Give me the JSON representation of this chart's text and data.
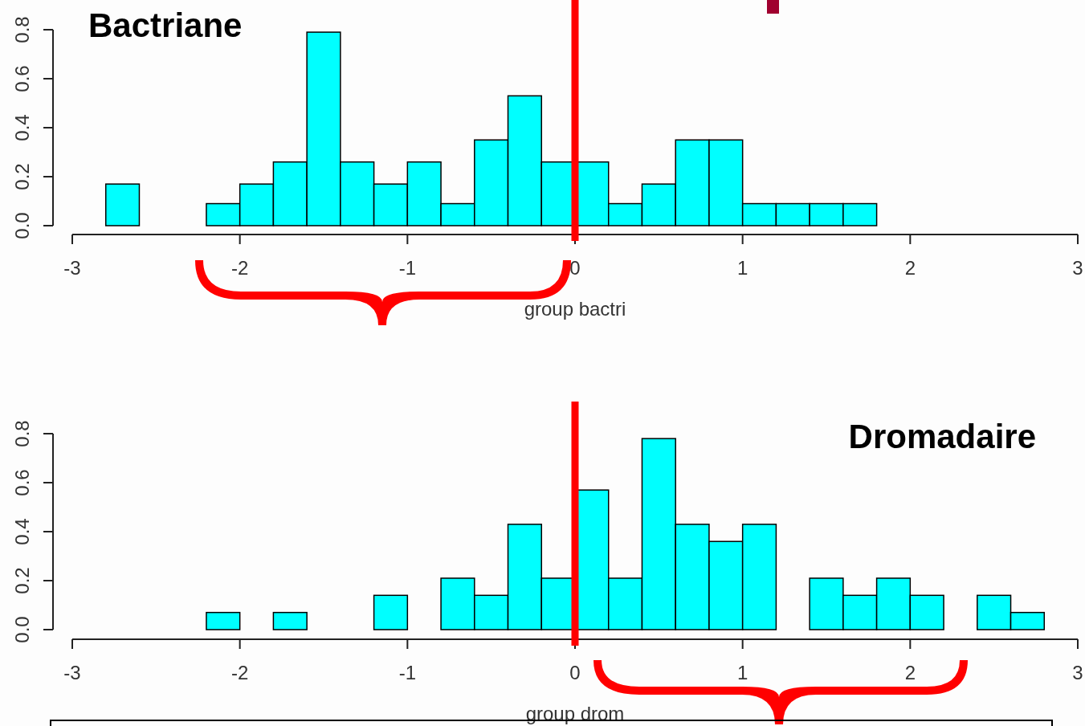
{
  "chart_data": [
    {
      "type": "histogram",
      "title": "Bactriane",
      "xlabel": "group bactri",
      "color": "#00ffff",
      "bins": [
        -2.8,
        -2.6,
        -2.4,
        -2.2,
        -2.0,
        -1.8,
        -1.6,
        -1.4,
        -1.2,
        -1.0,
        -0.8,
        -0.6,
        -0.4,
        -0.2,
        0,
        0.2,
        0.4,
        0.6,
        0.8,
        1.0,
        1.2,
        1.4,
        1.6,
        1.8,
        2.0,
        2.2,
        2.4,
        2.6,
        2.8
      ],
      "values": [
        0.17,
        0,
        0,
        0.09,
        0.17,
        0.26,
        0.79,
        0.26,
        0.17,
        0.26,
        0.09,
        0.35,
        0.53,
        0.26,
        0.26,
        0.09,
        0.17,
        0.35,
        0.35,
        0.09,
        0.09,
        0.09,
        0.09,
        0,
        0,
        0,
        0,
        0
      ],
      "xlim": [
        -3,
        3
      ],
      "xticks": [
        -3,
        -2,
        -1,
        0,
        1,
        2,
        3
      ],
      "ylim": [
        0,
        0.8
      ],
      "yticks": [
        {
          "value": 0,
          "label": "0.0"
        },
        0.2,
        0.4,
        0.6,
        0.8
      ],
      "ref_lines": [
        {
          "axis": "x",
          "value": 0,
          "color": "#ff0000"
        }
      ]
    },
    {
      "type": "histogram",
      "title": "Dromadaire",
      "xlabel": "group drom",
      "color": "#00ffff",
      "bins": [
        -2.8,
        -2.6,
        -2.4,
        -2.2,
        -2.0,
        -1.8,
        -1.6,
        -1.4,
        -1.2,
        -1.0,
        -0.8,
        -0.6,
        -0.4,
        -0.2,
        0,
        0.2,
        0.4,
        0.6,
        0.8,
        1.0,
        1.2,
        1.4,
        1.6,
        1.8,
        2.0,
        2.2,
        2.4,
        2.6,
        2.8
      ],
      "values": [
        0,
        0,
        0,
        0.07,
        0,
        0.07,
        0,
        0,
        0.14,
        0,
        0.21,
        0.14,
        0.43,
        0.21,
        0.57,
        0.21,
        0.78,
        0.43,
        0.36,
        0.43,
        0,
        0.21,
        0.14,
        0.21,
        0.14,
        0,
        0.14,
        0.07
      ],
      "xlim": [
        -3,
        3
      ],
      "xticks": [
        -3,
        -2,
        -1,
        0,
        1,
        2,
        3
      ],
      "ylim": [
        0,
        0.8
      ],
      "yticks": [
        {
          "value": 0,
          "label": "0.0"
        },
        0.2,
        0.4,
        0.6,
        0.8
      ],
      "ref_lines": [
        {
          "axis": "x",
          "value": 0,
          "color": "#ff0000"
        }
      ]
    }
  ]
}
